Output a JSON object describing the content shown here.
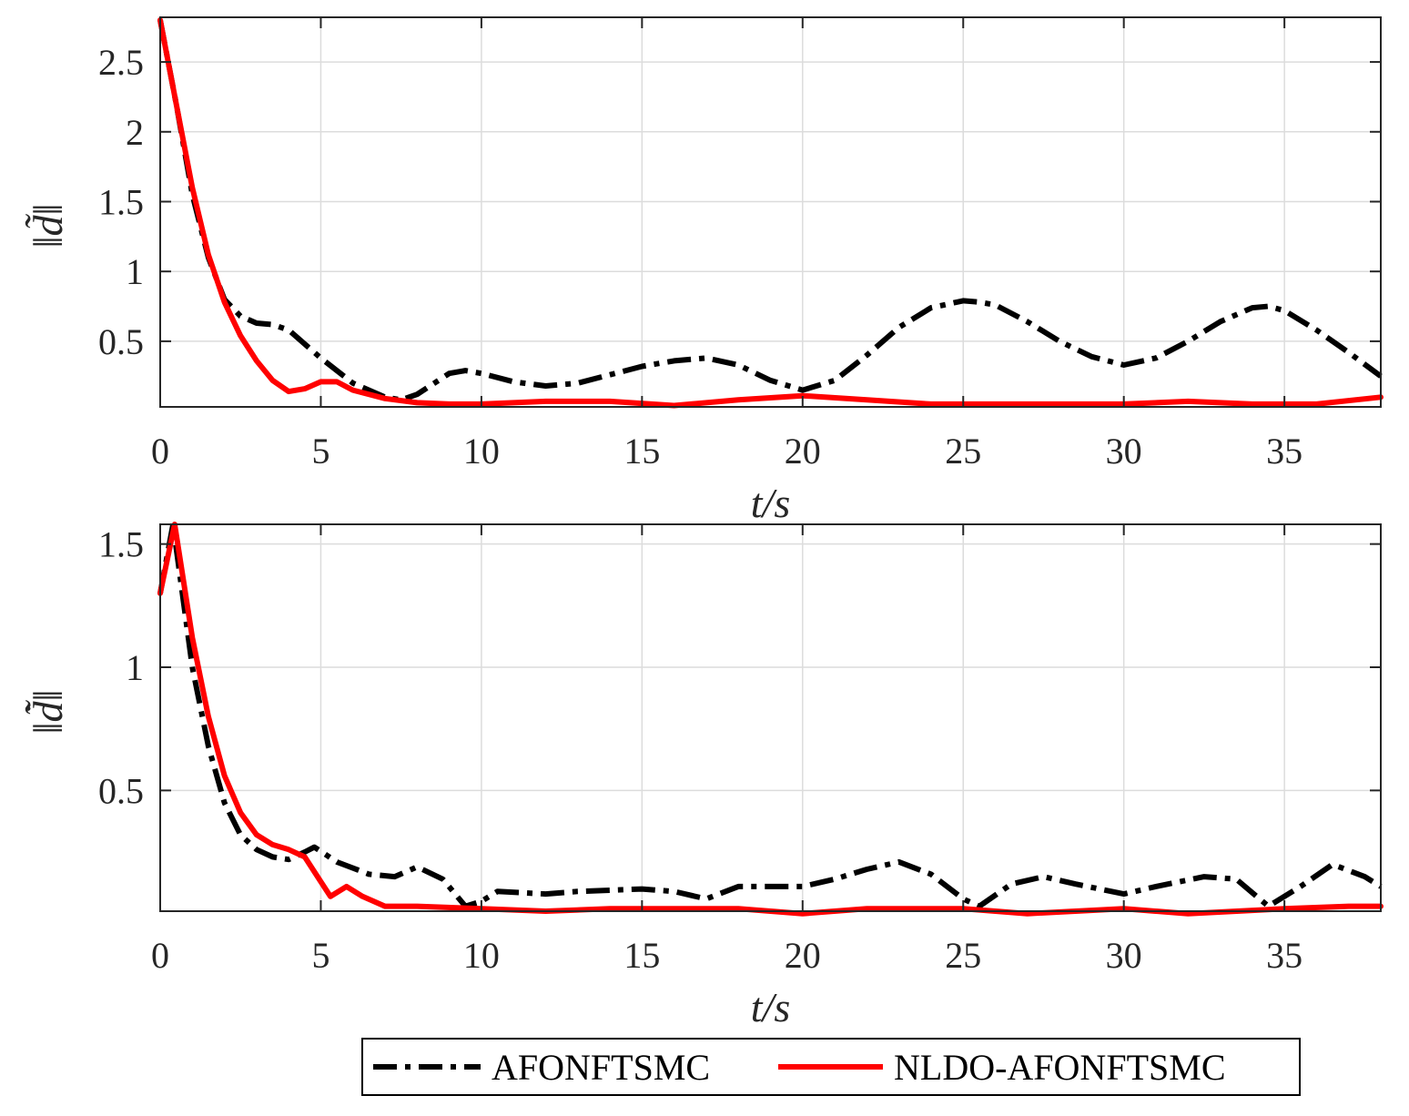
{
  "chart_data": [
    {
      "type": "line",
      "xlabel": "t/s",
      "ylabel": "‖d̃‖",
      "xlim": [
        0,
        38
      ],
      "ylim": [
        0.03,
        2.82
      ],
      "xticks": [
        0,
        5,
        10,
        15,
        20,
        25,
        30,
        35
      ],
      "yticks": [
        0.5,
        1,
        1.5,
        2,
        2.5
      ],
      "ytick_labels": [
        "0.5",
        "1",
        "1.5",
        "2",
        "2.5"
      ],
      "grid": true,
      "series": [
        {
          "name": "AFONFTSMC",
          "style": "dashdot",
          "color": "#000000",
          "x": [
            0,
            0.5,
            1,
            1.5,
            2,
            2.5,
            3,
            3.5,
            4,
            5,
            6,
            7,
            7.5,
            8,
            9,
            9.5,
            10,
            11,
            12,
            13,
            14,
            15,
            16,
            17,
            18,
            19,
            20,
            21,
            22,
            23,
            24,
            25,
            25.5,
            26,
            27,
            28,
            29,
            30,
            31,
            32,
            33,
            34,
            34.5,
            35,
            36,
            37,
            38
          ],
          "y": [
            2.8,
            2.2,
            1.55,
            1.1,
            0.8,
            0.68,
            0.63,
            0.62,
            0.58,
            0.38,
            0.2,
            0.1,
            0.08,
            0.12,
            0.27,
            0.29,
            0.27,
            0.21,
            0.18,
            0.2,
            0.26,
            0.32,
            0.36,
            0.38,
            0.33,
            0.22,
            0.15,
            0.22,
            0.4,
            0.6,
            0.74,
            0.79,
            0.78,
            0.76,
            0.64,
            0.5,
            0.39,
            0.33,
            0.38,
            0.5,
            0.64,
            0.74,
            0.75,
            0.72,
            0.58,
            0.42,
            0.25
          ]
        },
        {
          "name": "NLDO-AFONFTSMC",
          "style": "solid",
          "color": "#ff0000",
          "x": [
            0,
            0.5,
            1,
            1.5,
            2,
            2.5,
            3,
            3.5,
            4,
            4.5,
            5,
            5.5,
            6,
            7,
            8,
            9,
            10,
            12,
            14,
            16,
            18,
            20,
            22,
            24,
            26,
            28,
            30,
            32,
            34,
            36,
            38
          ],
          "y": [
            2.8,
            2.2,
            1.6,
            1.12,
            0.78,
            0.54,
            0.36,
            0.22,
            0.14,
            0.16,
            0.21,
            0.21,
            0.15,
            0.09,
            0.06,
            0.05,
            0.05,
            0.07,
            0.07,
            0.04,
            0.08,
            0.11,
            0.08,
            0.05,
            0.05,
            0.05,
            0.05,
            0.07,
            0.05,
            0.05,
            0.1
          ]
        }
      ]
    },
    {
      "type": "line",
      "xlabel": "t/s",
      "ylabel": "‖d̃̇‖",
      "xlim": [
        0,
        38
      ],
      "ylim": [
        0.01,
        1.58
      ],
      "xticks": [
        0,
        5,
        10,
        15,
        20,
        25,
        30,
        35
      ],
      "yticks": [
        0.5,
        1,
        1.5
      ],
      "ytick_labels": [
        "0.5",
        "1",
        "1.5"
      ],
      "grid": true,
      "series": [
        {
          "name": "AFONFTSMC",
          "style": "dashdot",
          "color": "#000000",
          "x": [
            0,
            0.4,
            1,
            1.5,
            2,
            2.5,
            3,
            3.5,
            4,
            4.5,
            4.8,
            5.5,
            6.5,
            7.3,
            8,
            8.8,
            9.5,
            10,
            10.5,
            12,
            13,
            15,
            16,
            17,
            18,
            20,
            21,
            22,
            23,
            24,
            25,
            25.5,
            26.5,
            27.5,
            28.5,
            30,
            31,
            32.5,
            33.5,
            34.5,
            35.5,
            36.5,
            37.5,
            38
          ],
          "y": [
            1.3,
            1.58,
            1.0,
            0.68,
            0.45,
            0.32,
            0.26,
            0.23,
            0.22,
            0.25,
            0.27,
            0.21,
            0.16,
            0.15,
            0.19,
            0.14,
            0.03,
            0.05,
            0.09,
            0.08,
            0.09,
            0.1,
            0.09,
            0.06,
            0.11,
            0.11,
            0.14,
            0.18,
            0.21,
            0.16,
            0.06,
            0.03,
            0.12,
            0.15,
            0.12,
            0.08,
            0.11,
            0.15,
            0.14,
            0.03,
            0.11,
            0.2,
            0.15,
            0.11
          ]
        },
        {
          "name": "NLDO-AFONFTSMC",
          "style": "solid",
          "color": "#ff0000",
          "x": [
            0,
            0.45,
            1,
            1.5,
            2,
            2.5,
            3,
            3.5,
            4,
            4.5,
            5,
            5.3,
            5.8,
            6.3,
            7,
            8,
            10,
            12,
            14,
            16,
            18,
            20,
            22,
            25,
            27,
            30,
            32,
            35,
            37,
            38
          ],
          "y": [
            1.3,
            1.58,
            1.12,
            0.8,
            0.56,
            0.41,
            0.32,
            0.28,
            0.26,
            0.23,
            0.13,
            0.07,
            0.11,
            0.07,
            0.03,
            0.03,
            0.02,
            0.01,
            0.02,
            0.02,
            0.02,
            0.0,
            0.02,
            0.02,
            0.0,
            0.02,
            0.0,
            0.02,
            0.03,
            0.03
          ]
        }
      ]
    }
  ],
  "legend": {
    "placement": "bottom",
    "entries": [
      "AFONFTSMC",
      "NLDO-AFONFTSMC"
    ]
  }
}
